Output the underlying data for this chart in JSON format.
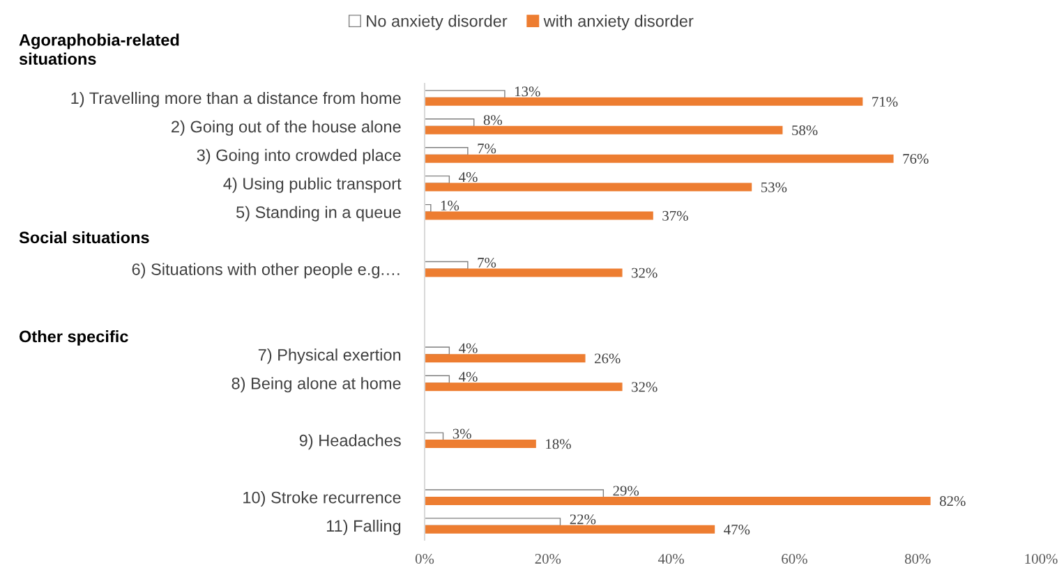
{
  "chart_data": {
    "type": "bar",
    "orientation": "horizontal",
    "categories": [
      "1) Travelling more than a distance from home",
      "2) Going out of the house alone",
      "3) Going into crowded place",
      "4) Using public transport",
      "5) Standing in a queue",
      null,
      "6) Situations with other people e.g.…",
      null,
      null,
      "7) Physical exertion",
      "8) Being alone at home",
      null,
      "9) Headaches",
      null,
      "10) Stroke recurrence",
      "11) Falling"
    ],
    "series": [
      {
        "name": "No anxiety disorder",
        "color": "#ffffff",
        "values": [
          13,
          8,
          7,
          4,
          1,
          null,
          7,
          null,
          null,
          4,
          4,
          null,
          3,
          null,
          29,
          22
        ],
        "value_labels": [
          "13%",
          "8%",
          "7%",
          "4%",
          "1%",
          null,
          "7%",
          null,
          null,
          "4%",
          "4%",
          null,
          "3%",
          null,
          "29%",
          "22%"
        ]
      },
      {
        "name": "with anxiety disorder",
        "color": "#ed7d31",
        "values": [
          71,
          58,
          76,
          53,
          37,
          null,
          32,
          null,
          null,
          26,
          32,
          null,
          18,
          null,
          82,
          47
        ],
        "value_labels": [
          "71%",
          "58%",
          "76%",
          "53%",
          "37%",
          null,
          "32%",
          null,
          null,
          "26%",
          "32%",
          null,
          "18%",
          null,
          "82%",
          "47%"
        ]
      }
    ],
    "annotations": [
      "Agoraphobia-related\nsituations",
      "Social situations",
      "Other specific"
    ],
    "xlim": [
      0,
      100
    ],
    "xticks": [
      {
        "value": 0,
        "label": "0%"
      },
      {
        "value": 20,
        "label": "20%"
      },
      {
        "value": 40,
        "label": "40%"
      },
      {
        "value": 60,
        "label": "60%"
      },
      {
        "value": 80,
        "label": "80%"
      },
      {
        "value": 100,
        "label": "100%"
      }
    ],
    "legend": "top",
    "grid": false
  }
}
